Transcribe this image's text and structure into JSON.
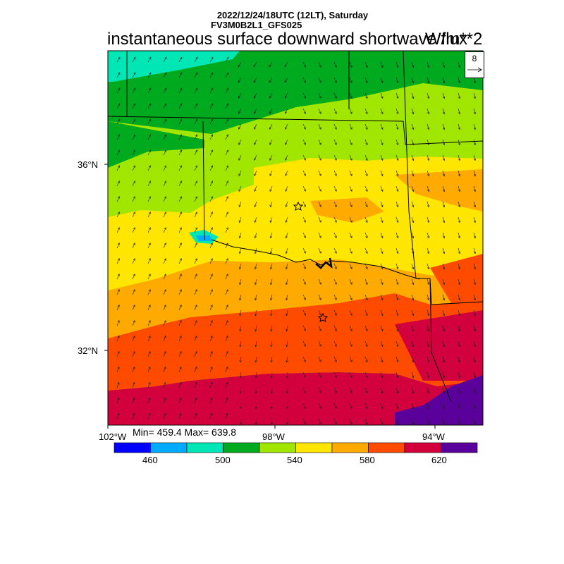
{
  "header": {
    "datetime": "2022/12/24/18UTC (12LT), Saturday",
    "model": "FV3M0B2L1_GFS025",
    "title": "instantaneous surface downward shortwave flux",
    "units": "W/m**2"
  },
  "stats": {
    "text": "Min= 459.4 Max= 639.8",
    "min": 459.4,
    "max": 639.8
  },
  "axes": {
    "lat_labels": [
      "36°N",
      "32°N"
    ],
    "lon_labels": [
      "102°W",
      "98°W",
      "94°W"
    ]
  },
  "reference_vector": {
    "label": "8"
  },
  "colorbar": {
    "labels": [
      "460",
      "500",
      "540",
      "580",
      "620"
    ],
    "colors": [
      "#0000ff",
      "#00aaff",
      "#00e6b4",
      "#00aa1e",
      "#a0e600",
      "#ffe600",
      "#ffaa00",
      "#ff4b00",
      "#d2003c",
      "#5a009b"
    ]
  },
  "map": {
    "markers": [
      "star",
      "star"
    ],
    "features": [
      "state-borders",
      "red-river",
      "lake"
    ]
  }
}
